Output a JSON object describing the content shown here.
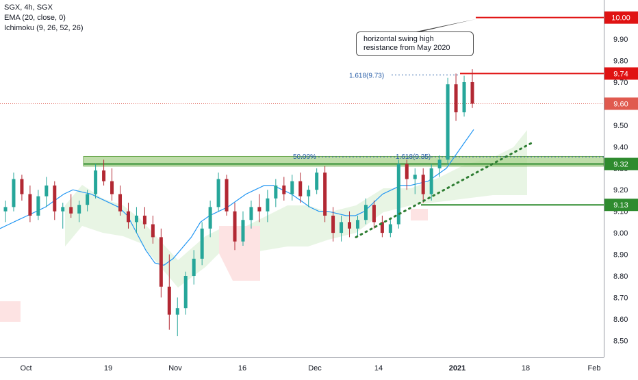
{
  "legend": {
    "symbol_line": "SGX, 4h, SGX",
    "ema_line": "EMA (20, close, 0)",
    "ichimoku_line": "Ichimoku (9, 26, 52, 26)"
  },
  "callout": {
    "line1": "horizontal swing high",
    "line2": "resistance from May 2020"
  },
  "annotations": {
    "fib_top": "1.618(9.73)",
    "fib_mid": "1.618(9.35)",
    "fib_half": "50.00%"
  },
  "colors": {
    "up": "#26a69a",
    "down": "#b22833",
    "ema": "#2196f3",
    "resistance": "#e01212",
    "support": "#2e8b2e",
    "zone_fill": "#a9d18e",
    "cloud_bull": "#e8f5e4",
    "cloud_bear": "#fde3e3",
    "last_price": "#e05a4f"
  },
  "chart_data": {
    "type": "candlestick",
    "x_ticks": [
      "Oct",
      "19",
      "Nov",
      "16",
      "Dec",
      "14",
      "2021",
      "18",
      "Feb"
    ],
    "y_ticks": [
      "8.50",
      "8.60",
      "8.70",
      "8.80",
      "8.90",
      "9.00",
      "9.10",
      "9.20",
      "9.30",
      "9.40",
      "9.50",
      "9.60",
      "9.70",
      "9.80",
      "9.90",
      "10.00"
    ],
    "ylim": [
      8.42,
      10.08
    ],
    "price_labels": [
      {
        "value": 10.0,
        "text": "10.00",
        "kind": "resistance"
      },
      {
        "value": 9.74,
        "text": "9.74",
        "kind": "resistance"
      },
      {
        "value": 9.6,
        "text": "9.60",
        "kind": "last"
      },
      {
        "value": 9.32,
        "text": "9.32",
        "kind": "support"
      },
      {
        "value": 9.13,
        "text": "9.13",
        "kind": "support"
      }
    ],
    "horizontal_levels": [
      {
        "value": 10.0,
        "kind": "resistance"
      },
      {
        "value": 9.74,
        "kind": "resistance"
      },
      {
        "value": 9.32,
        "kind": "support"
      },
      {
        "value": 9.13,
        "kind": "support"
      }
    ],
    "resistance_zone": [
      9.31,
      9.355
    ],
    "last_price": 9.6,
    "fib_levels": [
      9.73,
      9.35
    ],
    "trendline": {
      "start": [
        "Dec 8",
        8.98
      ],
      "end": [
        "Jan 25",
        9.42
      ]
    },
    "ema_series": [
      9.02,
      9.04,
      9.06,
      9.08,
      9.1,
      9.12,
      9.15,
      9.18,
      9.2,
      9.19,
      9.18,
      9.16,
      9.14,
      9.12,
      9.08,
      9.0,
      8.92,
      8.86,
      8.85,
      8.88,
      8.93,
      8.98,
      9.05,
      9.08,
      9.1,
      9.12,
      9.15,
      9.18,
      9.2,
      9.22,
      9.22,
      9.2,
      9.18,
      9.15,
      9.12,
      9.1,
      9.1,
      9.09,
      9.08,
      9.08,
      9.1,
      9.14,
      9.18,
      9.2,
      9.22,
      9.22,
      9.23,
      9.24,
      9.27,
      9.3,
      9.36,
      9.42,
      9.48
    ],
    "candles": [
      {
        "o": 9.1,
        "h": 9.15,
        "l": 9.05,
        "c": 9.12
      },
      {
        "o": 9.12,
        "h": 9.28,
        "l": 9.1,
        "c": 9.25
      },
      {
        "o": 9.25,
        "h": 9.27,
        "l": 9.15,
        "c": 9.18
      },
      {
        "o": 9.18,
        "h": 9.22,
        "l": 9.05,
        "c": 9.08
      },
      {
        "o": 9.08,
        "h": 9.2,
        "l": 9.06,
        "c": 9.17
      },
      {
        "o": 9.17,
        "h": 9.26,
        "l": 9.12,
        "c": 9.22
      },
      {
        "o": 9.22,
        "h": 9.24,
        "l": 9.06,
        "c": 9.1
      },
      {
        "o": 9.1,
        "h": 9.14,
        "l": 9.02,
        "c": 9.12
      },
      {
        "o": 9.12,
        "h": 9.18,
        "l": 9.07,
        "c": 9.09
      },
      {
        "o": 9.09,
        "h": 9.15,
        "l": 9.05,
        "c": 9.13
      },
      {
        "o": 9.13,
        "h": 9.2,
        "l": 9.1,
        "c": 9.18
      },
      {
        "o": 9.18,
        "h": 9.32,
        "l": 9.16,
        "c": 9.29
      },
      {
        "o": 9.29,
        "h": 9.34,
        "l": 9.22,
        "c": 9.24
      },
      {
        "o": 9.24,
        "h": 9.3,
        "l": 9.15,
        "c": 9.18
      },
      {
        "o": 9.18,
        "h": 9.22,
        "l": 9.08,
        "c": 9.1
      },
      {
        "o": 9.1,
        "h": 9.14,
        "l": 9.02,
        "c": 9.05
      },
      {
        "o": 9.05,
        "h": 9.12,
        "l": 9.0,
        "c": 9.08
      },
      {
        "o": 9.08,
        "h": 9.12,
        "l": 9.02,
        "c": 9.04
      },
      {
        "o": 9.04,
        "h": 9.08,
        "l": 8.95,
        "c": 8.98
      },
      {
        "o": 8.98,
        "h": 9.02,
        "l": 8.7,
        "c": 8.75
      },
      {
        "o": 8.75,
        "h": 8.9,
        "l": 8.55,
        "c": 8.62
      },
      {
        "o": 8.62,
        "h": 8.7,
        "l": 8.52,
        "c": 8.65
      },
      {
        "o": 8.65,
        "h": 8.82,
        "l": 8.62,
        "c": 8.8
      },
      {
        "o": 8.8,
        "h": 8.92,
        "l": 8.76,
        "c": 8.88
      },
      {
        "o": 8.88,
        "h": 9.05,
        "l": 8.85,
        "c": 9.02
      },
      {
        "o": 9.02,
        "h": 9.15,
        "l": 8.98,
        "c": 9.12
      },
      {
        "o": 9.12,
        "h": 9.28,
        "l": 9.1,
        "c": 9.25
      },
      {
        "o": 9.25,
        "h": 9.27,
        "l": 9.08,
        "c": 9.1
      },
      {
        "o": 9.1,
        "h": 9.14,
        "l": 8.92,
        "c": 8.96
      },
      {
        "o": 8.96,
        "h": 9.1,
        "l": 8.94,
        "c": 9.06
      },
      {
        "o": 9.06,
        "h": 9.15,
        "l": 9.02,
        "c": 9.12
      },
      {
        "o": 9.12,
        "h": 9.18,
        "l": 9.05,
        "c": 9.1
      },
      {
        "o": 9.1,
        "h": 9.2,
        "l": 9.05,
        "c": 9.16
      },
      {
        "o": 9.16,
        "h": 9.25,
        "l": 9.12,
        "c": 9.22
      },
      {
        "o": 9.22,
        "h": 9.26,
        "l": 9.15,
        "c": 9.18
      },
      {
        "o": 9.18,
        "h": 9.27,
        "l": 9.15,
        "c": 9.24
      },
      {
        "o": 9.24,
        "h": 9.28,
        "l": 9.14,
        "c": 9.17
      },
      {
        "o": 9.17,
        "h": 9.22,
        "l": 9.12,
        "c": 9.2
      },
      {
        "o": 9.2,
        "h": 9.3,
        "l": 9.18,
        "c": 9.28
      },
      {
        "o": 9.28,
        "h": 9.31,
        "l": 9.05,
        "c": 9.08
      },
      {
        "o": 9.08,
        "h": 9.12,
        "l": 8.96,
        "c": 9.0
      },
      {
        "o": 9.0,
        "h": 9.08,
        "l": 8.96,
        "c": 9.05
      },
      {
        "o": 9.05,
        "h": 9.1,
        "l": 8.98,
        "c": 9.02
      },
      {
        "o": 9.02,
        "h": 9.08,
        "l": 8.98,
        "c": 9.06
      },
      {
        "o": 9.06,
        "h": 9.16,
        "l": 9.04,
        "c": 9.13
      },
      {
        "o": 9.13,
        "h": 9.15,
        "l": 9.02,
        "c": 9.05
      },
      {
        "o": 9.05,
        "h": 9.08,
        "l": 8.98,
        "c": 9.0
      },
      {
        "o": 9.0,
        "h": 9.06,
        "l": 8.98,
        "c": 9.04
      },
      {
        "o": 9.04,
        "h": 9.34,
        "l": 9.02,
        "c": 9.32
      },
      {
        "o": 9.32,
        "h": 9.34,
        "l": 9.2,
        "c": 9.25
      },
      {
        "o": 9.25,
        "h": 9.3,
        "l": 9.18,
        "c": 9.27
      },
      {
        "o": 9.27,
        "h": 9.3,
        "l": 9.14,
        "c": 9.18
      },
      {
        "o": 9.18,
        "h": 9.32,
        "l": 9.15,
        "c": 9.3
      }
    ],
    "candles_tail": [
      {
        "o": 9.3,
        "h": 9.36,
        "l": 9.26,
        "c": 9.34
      },
      {
        "o": 9.34,
        "h": 9.72,
        "l": 9.32,
        "c": 9.69
      },
      {
        "o": 9.69,
        "h": 9.74,
        "l": 9.52,
        "c": 9.56
      },
      {
        "o": 9.56,
        "h": 9.73,
        "l": 9.54,
        "c": 9.7
      },
      {
        "o": 9.7,
        "h": 9.76,
        "l": 9.58,
        "c": 9.6
      }
    ]
  }
}
